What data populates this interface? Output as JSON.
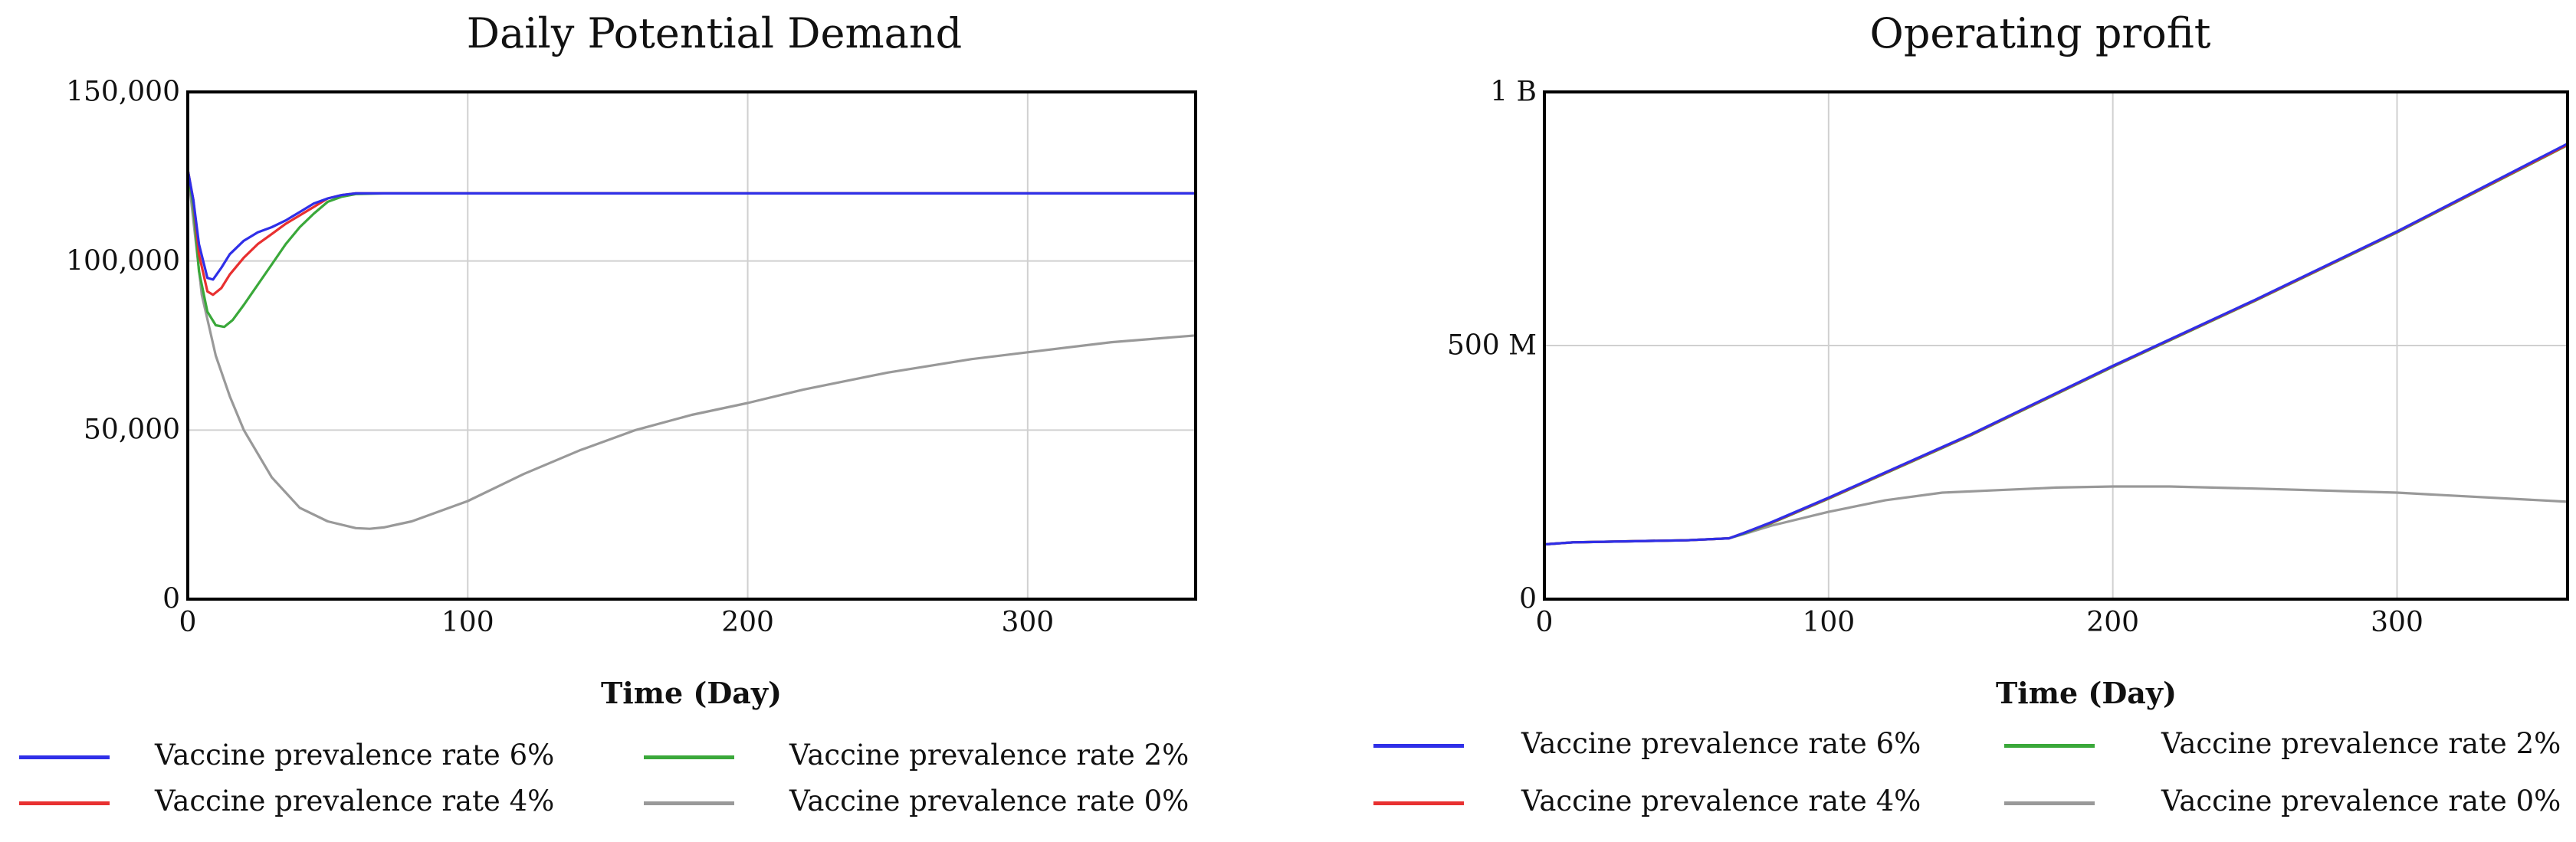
{
  "chart_data": [
    {
      "type": "line",
      "title": "Daily Potential Demand",
      "xlabel": "Time (Day)",
      "ylabel": "",
      "xlim": [
        0,
        360
      ],
      "ylim": [
        0,
        150000
      ],
      "x_ticks": [
        0,
        100,
        200,
        300
      ],
      "x_tick_labels": [
        "0",
        "100",
        "200",
        "300"
      ],
      "y_ticks": [
        0,
        50000,
        100000,
        150000
      ],
      "y_tick_labels": [
        "0",
        "50,000",
        "100,000",
        "150,000"
      ],
      "grid": true,
      "legend_position": "bottom",
      "series": [
        {
          "name": "Vaccine prevalence rate 6%",
          "color": "#2f2fe8",
          "points": [
            [
              0,
              127000
            ],
            [
              2,
              118000
            ],
            [
              4,
              105000
            ],
            [
              7,
              95000
            ],
            [
              9,
              94500
            ],
            [
              12,
              98000
            ],
            [
              15,
              102000
            ],
            [
              20,
              106000
            ],
            [
              25,
              108500
            ],
            [
              30,
              110000
            ],
            [
              35,
              112000
            ],
            [
              40,
              114500
            ],
            [
              45,
              117000
            ],
            [
              50,
              118500
            ],
            [
              55,
              119500
            ],
            [
              60,
              120000
            ],
            [
              70,
              120000
            ],
            [
              360,
              120000
            ]
          ]
        },
        {
          "name": "Vaccine prevalence rate 4%",
          "color": "#e83030",
          "points": [
            [
              0,
              127000
            ],
            [
              2,
              118000
            ],
            [
              4,
              102000
            ],
            [
              7,
              91000
            ],
            [
              9,
              90000
            ],
            [
              12,
              92000
            ],
            [
              15,
              96000
            ],
            [
              20,
              101000
            ],
            [
              25,
              105000
            ],
            [
              30,
              108000
            ],
            [
              35,
              111000
            ],
            [
              40,
              113500
            ],
            [
              45,
              116000
            ],
            [
              50,
              118500
            ],
            [
              55,
              119500
            ],
            [
              60,
              120000
            ],
            [
              70,
              120000
            ],
            [
              360,
              120000
            ]
          ]
        },
        {
          "name": "Vaccine prevalence rate 2%",
          "color": "#3aa83a",
          "points": [
            [
              0,
              127000
            ],
            [
              2,
              116000
            ],
            [
              4,
              97000
            ],
            [
              7,
              85000
            ],
            [
              10,
              81000
            ],
            [
              13,
              80500
            ],
            [
              16,
              82500
            ],
            [
              20,
              87000
            ],
            [
              25,
              93000
            ],
            [
              30,
              99000
            ],
            [
              35,
              105000
            ],
            [
              40,
              110000
            ],
            [
              45,
              114000
            ],
            [
              50,
              117500
            ],
            [
              55,
              119000
            ],
            [
              60,
              119800
            ],
            [
              70,
              120000
            ],
            [
              360,
              120000
            ]
          ]
        },
        {
          "name": "Vaccine prevalence rate 0%",
          "color": "#999999",
          "points": [
            [
              0,
              127000
            ],
            [
              2,
              112000
            ],
            [
              5,
              90000
            ],
            [
              10,
              72000
            ],
            [
              15,
              60000
            ],
            [
              20,
              50000
            ],
            [
              30,
              36000
            ],
            [
              40,
              27000
            ],
            [
              50,
              23000
            ],
            [
              60,
              21000
            ],
            [
              65,
              20800
            ],
            [
              70,
              21200
            ],
            [
              80,
              23000
            ],
            [
              100,
              29000
            ],
            [
              120,
              37000
            ],
            [
              140,
              44000
            ],
            [
              160,
              50000
            ],
            [
              180,
              54500
            ],
            [
              200,
              58000
            ],
            [
              220,
              62000
            ],
            [
              250,
              67000
            ],
            [
              280,
              71000
            ],
            [
              300,
              73000
            ],
            [
              330,
              76000
            ],
            [
              360,
              78000
            ]
          ]
        }
      ]
    },
    {
      "type": "line",
      "title": "Operating profit",
      "xlabel": "Time (Day)",
      "ylabel": "",
      "xlim": [
        0,
        360
      ],
      "ylim": [
        0,
        1000000000
      ],
      "x_ticks": [
        0,
        100,
        200,
        300
      ],
      "x_tick_labels": [
        "0",
        "100",
        "200",
        "300"
      ],
      "y_ticks": [
        0,
        500000000,
        1000000000
      ],
      "y_tick_labels": [
        "0",
        "500 M",
        "1 B"
      ],
      "grid": true,
      "legend_position": "bottom",
      "series": [
        {
          "name": "Vaccine prevalence rate 6%",
          "color": "#2f2fe8",
          "points": [
            [
              0,
              108000000
            ],
            [
              10,
              112000000
            ],
            [
              30,
              114000000
            ],
            [
              50,
              116000000
            ],
            [
              65,
              120000000
            ],
            [
              70,
              130000000
            ],
            [
              80,
              152000000
            ],
            [
              100,
              200000000
            ],
            [
              150,
              325000000
            ],
            [
              200,
              460000000
            ],
            [
              250,
              590000000
            ],
            [
              300,
              725000000
            ],
            [
              360,
              898000000
            ]
          ]
        },
        {
          "name": "Vaccine prevalence rate 4%",
          "color": "#e83030",
          "points": [
            [
              0,
              108000000
            ],
            [
              10,
              112000000
            ],
            [
              30,
              114000000
            ],
            [
              50,
              116000000
            ],
            [
              65,
              120000000
            ],
            [
              70,
              130000000
            ],
            [
              80,
              151000000
            ],
            [
              100,
              199000000
            ],
            [
              150,
              324000000
            ],
            [
              200,
              459000000
            ],
            [
              250,
              589000000
            ],
            [
              300,
              724000000
            ],
            [
              360,
              896000000
            ]
          ]
        },
        {
          "name": "Vaccine prevalence rate 2%",
          "color": "#3aa83a",
          "points": [
            [
              0,
              108000000
            ],
            [
              10,
              112000000
            ],
            [
              30,
              114000000
            ],
            [
              50,
              116000000
            ],
            [
              65,
              120000000
            ],
            [
              70,
              129000000
            ],
            [
              80,
              150000000
            ],
            [
              100,
              198000000
            ],
            [
              150,
              323000000
            ],
            [
              200,
              458000000
            ],
            [
              250,
              588000000
            ],
            [
              300,
              723000000
            ],
            [
              360,
              895000000
            ]
          ]
        },
        {
          "name": "Vaccine prevalence rate 0%",
          "color": "#999999",
          "points": [
            [
              0,
              108000000
            ],
            [
              10,
              112000000
            ],
            [
              30,
              114000000
            ],
            [
              50,
              116000000
            ],
            [
              65,
              120000000
            ],
            [
              70,
              128000000
            ],
            [
              80,
              145000000
            ],
            [
              100,
              172000000
            ],
            [
              120,
              195000000
            ],
            [
              140,
              210000000
            ],
            [
              160,
              215000000
            ],
            [
              180,
              220000000
            ],
            [
              200,
              222000000
            ],
            [
              220,
              222000000
            ],
            [
              250,
              218000000
            ],
            [
              300,
              210000000
            ],
            [
              360,
              192000000
            ]
          ]
        }
      ]
    }
  ]
}
